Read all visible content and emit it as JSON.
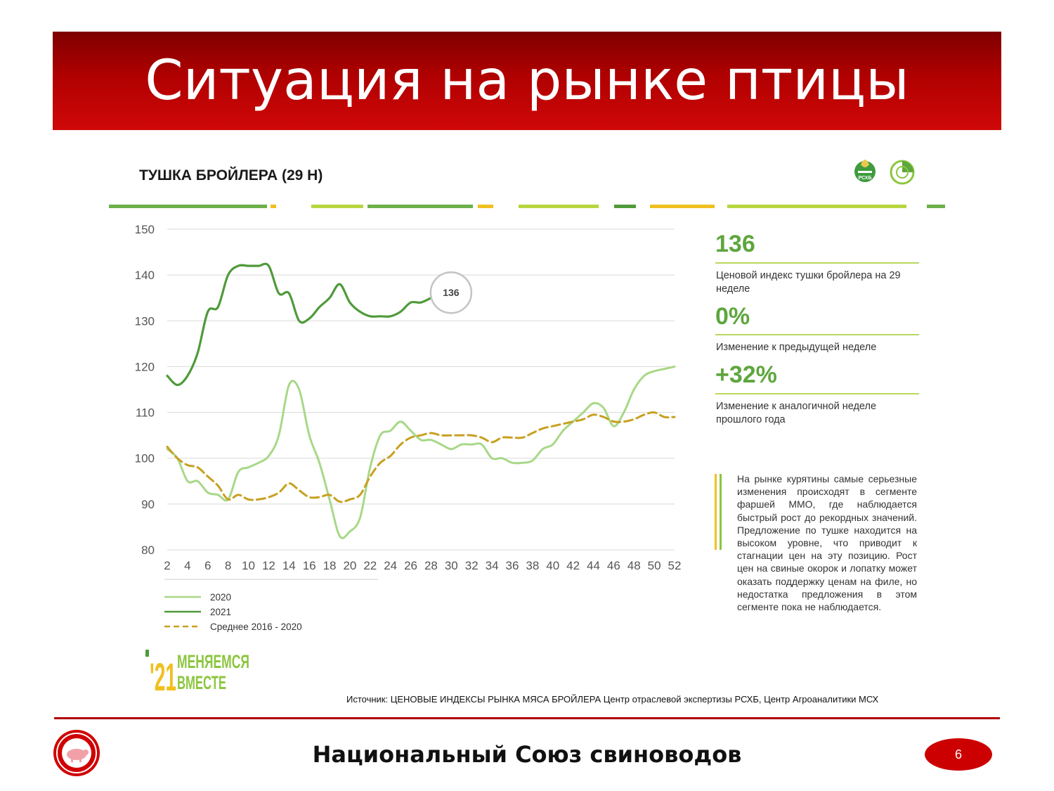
{
  "slide": {
    "title": "Ситуация на рынке птицы",
    "chart_heading": "ТУШКА БРОЙЛЕРА (29 Н)",
    "source": "Источник: ЦЕНОВЫЕ ИНДЕКСЫ РЫНКА МЯСА БРОЙЛЕРА  Центр отраслевой экспертизы РСХБ, Центр Агроаналитики МСХ",
    "footer_org": "Национальный Союз свиноводов",
    "page_number": "6",
    "logo_text": "РСХБ",
    "campaign": {
      "year": "'21",
      "line1": "МЕНЯЕМСЯ",
      "line2": "ВМЕСТЕ"
    }
  },
  "kpis": [
    {
      "value": "136",
      "label": "Ценовой индекс тушки бройлера на 29 неделе"
    },
    {
      "value": "0%",
      "label": "Изменение к предыдущей неделе"
    },
    {
      "value": "+32%",
      "label": "Изменение к аналогичной неделе прошлого года"
    }
  ],
  "note": "На рынке курятины самые серьезные изменения происходят в сегменте фаршей ММО, где наблюдается быстрый рост до рекордных значений. Предложение по тушке находится на высоком уровне, что приводит к стагнации цен на эту позицию. Рост цен на свиные окорок и лопатку может оказать поддержку ценам на филе, но недостатка предложения в этом сегменте пока не наблюдается.",
  "colors": {
    "accent_red": "#b00000",
    "series_2020": "#a8d888",
    "series_2021": "#4f9a3a",
    "series_avg": "#c8a020"
  },
  "chart_data": {
    "type": "line",
    "ylim": [
      80,
      150
    ],
    "yticks": [
      80,
      90,
      100,
      110,
      120,
      130,
      140,
      150
    ],
    "xlim": [
      2,
      52
    ],
    "xticks": [
      2,
      4,
      6,
      8,
      10,
      12,
      14,
      16,
      18,
      20,
      22,
      24,
      26,
      28,
      30,
      32,
      34,
      36,
      38,
      40,
      42,
      44,
      46,
      48,
      50,
      52
    ],
    "grid": true,
    "legend_position": "bottom-left",
    "callout": {
      "x": 29,
      "y": 136,
      "label": "136"
    },
    "series": [
      {
        "name": "2020",
        "x": [
          2,
          3,
          4,
          5,
          6,
          7,
          8,
          9,
          10,
          11,
          12,
          13,
          14,
          15,
          16,
          17,
          18,
          19,
          20,
          21,
          22,
          23,
          24,
          25,
          26,
          27,
          28,
          29,
          30,
          31,
          32,
          33,
          34,
          35,
          36,
          37,
          38,
          39,
          40,
          41,
          42,
          43,
          44,
          45,
          46,
          47,
          48,
          49,
          50,
          51,
          52
        ],
        "values": [
          102,
          100,
          95,
          95,
          92.5,
          92,
          91,
          97,
          98,
          99,
          100.5,
          105,
          116,
          115,
          105,
          99,
          91,
          83,
          84,
          87,
          98,
          105,
          106,
          108,
          106,
          104,
          104,
          103,
          102,
          103,
          103,
          103,
          100,
          100,
          99,
          99,
          99.5,
          102,
          103,
          106,
          108,
          110,
          112,
          111,
          107,
          110,
          115,
          118,
          119,
          119.5,
          120
        ]
      },
      {
        "name": "2021",
        "x": [
          2,
          3,
          4,
          5,
          6,
          7,
          8,
          9,
          10,
          11,
          12,
          13,
          14,
          15,
          16,
          17,
          18,
          19,
          20,
          21,
          22,
          23,
          24,
          25,
          26,
          27,
          28
        ],
        "values": [
          118,
          116,
          118,
          123,
          132,
          133,
          140,
          142,
          142,
          142,
          142,
          136,
          136,
          130,
          130.5,
          133,
          135,
          138,
          134,
          132,
          131,
          131,
          131,
          132,
          134,
          134,
          135
        ]
      },
      {
        "name": "Среднее 2016 - 2020",
        "x": [
          2,
          3,
          4,
          5,
          6,
          7,
          8,
          9,
          10,
          11,
          12,
          13,
          14,
          15,
          16,
          17,
          18,
          19,
          20,
          21,
          22,
          23,
          24,
          25,
          26,
          27,
          28,
          29,
          30,
          31,
          32,
          33,
          34,
          35,
          36,
          37,
          38,
          39,
          40,
          41,
          42,
          43,
          44,
          45,
          46,
          47,
          48,
          49,
          50,
          51,
          52
        ],
        "values": [
          102.5,
          100,
          98.5,
          98,
          96,
          94,
          91,
          92,
          91,
          91,
          91.5,
          92.5,
          94.5,
          93,
          91.5,
          91.5,
          92,
          90.5,
          91,
          92,
          96,
          99,
          100.5,
          103,
          104.5,
          105,
          105.5,
          105,
          105,
          105,
          105,
          104.5,
          103.5,
          104.5,
          104.5,
          104.5,
          105.5,
          106.5,
          107,
          107.5,
          108,
          108.5,
          109.5,
          109,
          108,
          108,
          108.5,
          109.5,
          110,
          109,
          109
        ]
      }
    ]
  }
}
